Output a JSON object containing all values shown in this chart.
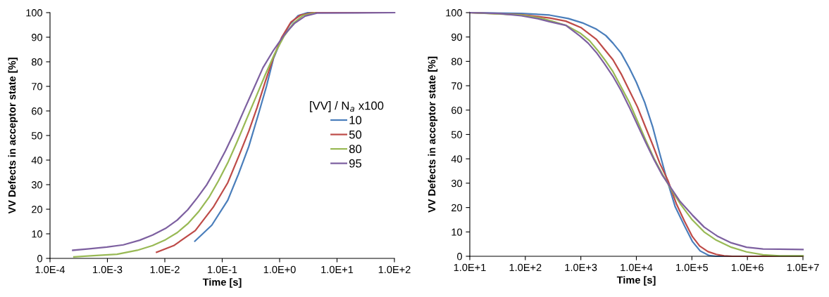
{
  "chart_data": [
    {
      "type": "line",
      "xlabel": "Time [s]",
      "ylabel": "VV Defects in acceptor state [%]",
      "legend_title": "[VV] / N$_{a}$ x100",
      "legend": "right",
      "log": "x",
      "grid": false,
      "marker": "none",
      "line_style": "solid",
      "xlim": [
        0.0001,
        100
      ],
      "xticks": [
        {
          "value": 0.0001,
          "label": "1.0E-4"
        },
        {
          "value": 0.001,
          "label": "1.0E-3"
        },
        {
          "value": 0.01,
          "label": "1.0E-2"
        },
        {
          "value": 0.1,
          "label": "1.0E-1"
        },
        {
          "value": 1,
          "label": "1.0E+0"
        },
        {
          "value": 10,
          "label": "1.0E+1"
        },
        {
          "value": 100,
          "label": "1.0E+2"
        }
      ],
      "ylim": [
        0,
        100
      ],
      "yticks": [
        0,
        10,
        20,
        30,
        40,
        50,
        60,
        70,
        80,
        90,
        100
      ],
      "series": [
        {
          "name": "10",
          "color": "#4a7ebb",
          "x": [
            0.0334,
            0.0658,
            0.125,
            0.191,
            0.291,
            0.425,
            0.59,
            0.783,
            1.09,
            1.51,
            2.1,
            3.07,
            100
          ],
          "values": [
            7.0,
            13.5,
            23.7,
            34.2,
            45.6,
            58.5,
            70,
            81.4,
            89.5,
            95.2,
            98.8,
            100,
            100
          ]
        },
        {
          "name": "50",
          "color": "#be4b48",
          "x": [
            0.00719,
            0.0143,
            0.034,
            0.0697,
            0.125,
            0.2,
            0.291,
            0.405,
            0.562,
            0.783,
            1.09,
            1.58,
            2.31,
            3.72,
            100
          ],
          "values": [
            2.5,
            5.2,
            11.3,
            20.8,
            30.8,
            42.3,
            51.8,
            61.4,
            71.9,
            81.9,
            90,
            96.2,
            99,
            100,
            100
          ]
        },
        {
          "name": "80",
          "color": "#98b954",
          "x": [
            0.000261,
            0.00064,
            0.00147,
            0.00332,
            0.00612,
            0.0103,
            0.0165,
            0.0251,
            0.0385,
            0.0587,
            0.0857,
            0.125,
            0.182,
            0.265,
            0.386,
            0.562,
            0.82,
            1.2,
            1.74,
            2.54,
            4.07
          ],
          "values": [
            0.6,
            1.2,
            1.7,
            3.3,
            5.2,
            7.6,
            10.5,
            14.1,
            18.9,
            24.8,
            31.5,
            38.9,
            47.5,
            56.6,
            65.6,
            74.7,
            83.3,
            90.5,
            95.7,
            98.8,
            99.9
          ]
        },
        {
          "name": "95",
          "color": "#7d60a0",
          "x": [
            0.000249,
            0.000482,
            0.000977,
            0.00189,
            0.00365,
            0.00612,
            0.0103,
            0.0165,
            0.0251,
            0.0366,
            0.0535,
            0.078,
            0.1135,
            0.166,
            0.241,
            0.352,
            0.513,
            0.783,
            1.2,
            1.83,
            2.79,
            4.47,
            100
          ],
          "values": [
            3.3,
            3.9,
            4.6,
            5.5,
            7.4,
            9.5,
            12.2,
            15.6,
            19.8,
            24.6,
            29.9,
            36.5,
            43.7,
            51.8,
            60.4,
            69,
            77.6,
            84.7,
            90.9,
            95.7,
            98.6,
            99.8,
            100
          ]
        }
      ]
    },
    {
      "type": "line",
      "xlabel": "Time [s]",
      "ylabel": "VV Defects in acceptor state [%]",
      "log": "x",
      "grid": false,
      "marker": "none",
      "line_style": "solid",
      "xlim": [
        10,
        10000000
      ],
      "xticks": [
        {
          "value": 10,
          "label": "1.0E+1"
        },
        {
          "value": 100,
          "label": "1.0E+2"
        },
        {
          "value": 1000,
          "label": "1.0E+3"
        },
        {
          "value": 10000,
          "label": "1.0E+4"
        },
        {
          "value": 100000,
          "label": "1.0E+5"
        },
        {
          "value": 1000000,
          "label": "1.0E+6"
        },
        {
          "value": 10000000,
          "label": "1.0E+7"
        }
      ],
      "ylim": [
        0,
        100
      ],
      "yticks": [
        0,
        10,
        20,
        30,
        40,
        50,
        60,
        70,
        80,
        90,
        100
      ],
      "series": [
        {
          "color": "#4a7ebb",
          "x": [
            10,
            85.1,
            273,
            594,
            1070,
            1910,
            2820,
            3780,
            5310,
            7460,
            10000,
            14100,
            19800,
            26300,
            35500,
            50100,
            73500,
            102000,
            141000,
            204000,
            275000,
            10000000
          ],
          "values": [
            100,
            99.7,
            99,
            97.6,
            95.8,
            93.2,
            90.6,
            87.5,
            83.4,
            77.3,
            71.4,
            63.2,
            52.9,
            42.2,
            31.5,
            20.3,
            12.5,
            6.1,
            2.2,
            0.3,
            0,
            0
          ]
        },
        {
          "color": "#be4b48",
          "x": [
            10,
            85.1,
            273,
            537,
            1000,
            1910,
            2630,
            3780,
            5310,
            7460,
            10500,
            14100,
            19800,
            26300,
            37200,
            52200,
            73500,
            102000,
            138000,
            195000,
            275000,
            380000,
            537000,
            10000000
          ],
          "values": [
            100,
            99.2,
            97.8,
            96.5,
            93.9,
            89,
            85.1,
            80.7,
            74.9,
            68.1,
            61.2,
            53.9,
            45.6,
            38.3,
            31,
            21.7,
            14.4,
            8.1,
            4.2,
            1.9,
            0.8,
            0.2,
            0,
            0
          ]
        },
        {
          "color": "#98b954",
          "x": [
            10,
            85.1,
            185,
            302,
            537,
            1000,
            1430,
            1995,
            2690,
            3780,
            5310,
            7460,
            10500,
            14800,
            20700,
            29100,
            40700,
            63100,
            102000,
            166000,
            275000,
            513000,
            966000,
            1910000,
            3780000,
            10000000
          ],
          "values": [
            100,
            99,
            97.8,
            96.5,
            94.8,
            91.4,
            88.5,
            84.6,
            80.7,
            75.8,
            69.5,
            63.2,
            55.4,
            47.6,
            40.3,
            33.9,
            28.1,
            21.2,
            14.9,
            10,
            6.6,
            3.7,
            1.8,
            0.6,
            0.2,
            0.2
          ]
        },
        {
          "color": "#7d60a0",
          "x": [
            10,
            32.1,
            85.1,
            168,
            273,
            537,
            968,
            1350,
            1910,
            2630,
            3780,
            5310,
            7460,
            10500,
            14800,
            20700,
            29100,
            40700,
            60300,
            102000,
            166000,
            286000,
            513000,
            966000,
            1910000,
            3780000,
            10000000
          ],
          "values": [
            100,
            99.7,
            98.7,
            97.5,
            96.3,
            94.8,
            90.4,
            87.5,
            83.6,
            79.2,
            73.9,
            68,
            61.2,
            53.9,
            46.6,
            39.8,
            33.4,
            28.5,
            22.7,
            16.9,
            12,
            8.3,
            5.5,
            3.7,
            3.0,
            2.9,
            2.8
          ]
        }
      ]
    }
  ]
}
